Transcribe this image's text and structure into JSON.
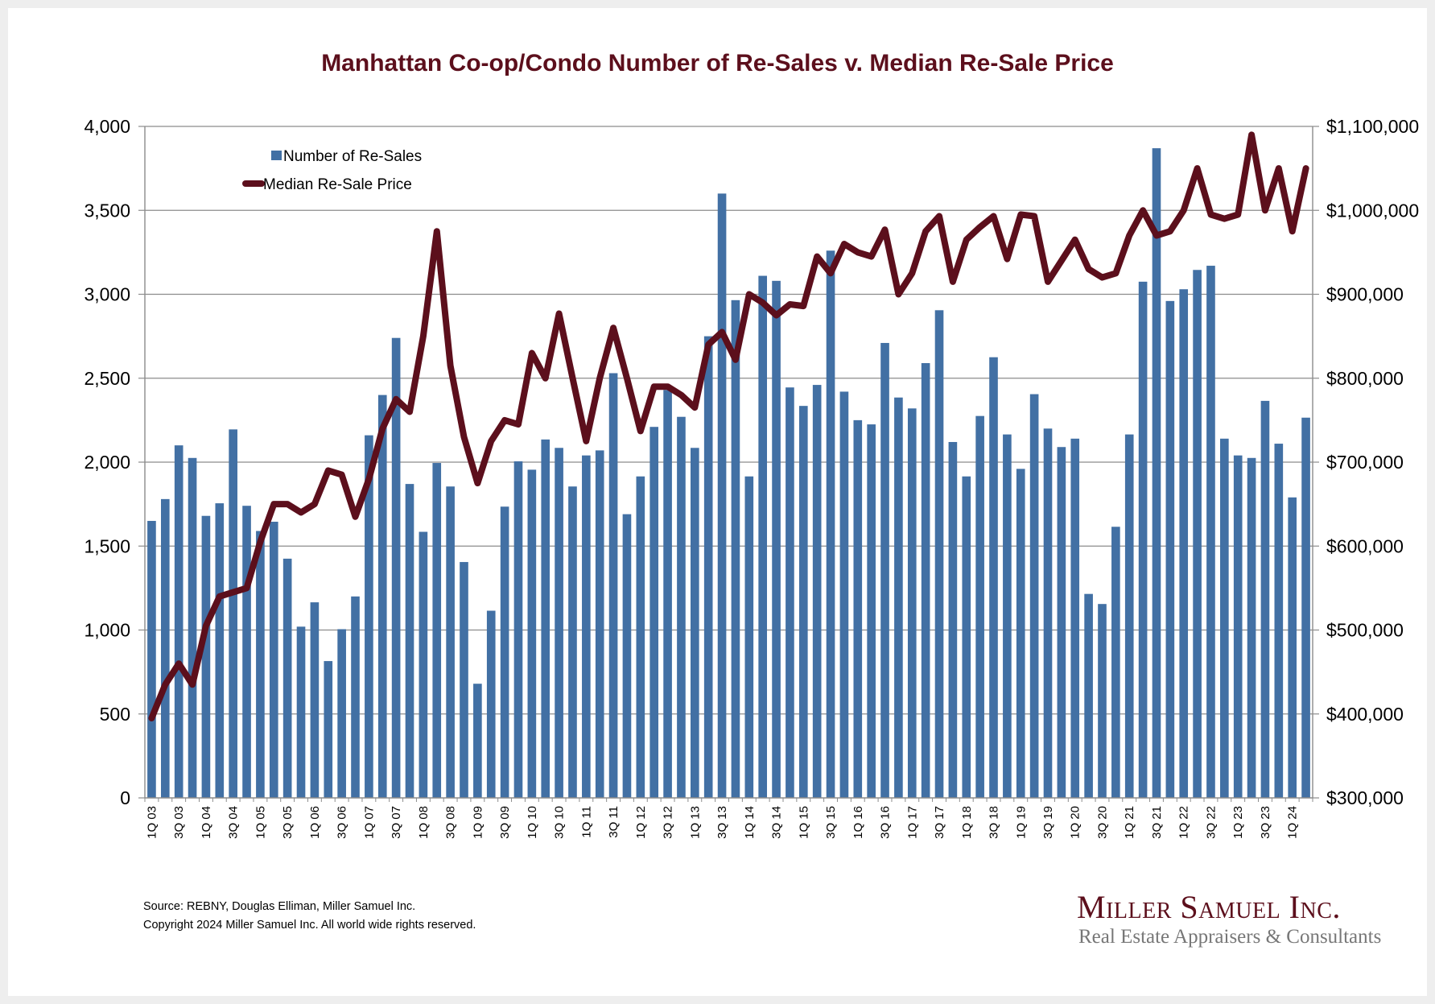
{
  "chart_data": {
    "type": "bar+line",
    "title": "Manhattan Co-op/Condo Number of Re-Sales v. Median Re-Sale Price",
    "xlabel": "",
    "ylabel_left": "",
    "ylabel_right": "",
    "categories": [
      "1Q 03",
      "2Q 03",
      "3Q 03",
      "4Q 03",
      "1Q 04",
      "2Q 04",
      "3Q 04",
      "4Q 04",
      "1Q 05",
      "2Q 05",
      "3Q 05",
      "4Q 05",
      "1Q 06",
      "2Q 06",
      "3Q 06",
      "4Q 06",
      "1Q 07",
      "2Q 07",
      "3Q 07",
      "4Q 07",
      "1Q 08",
      "2Q 08",
      "3Q 08",
      "4Q 08",
      "1Q 09",
      "2Q 09",
      "3Q 09",
      "4Q 09",
      "1Q 10",
      "2Q 10",
      "3Q 10",
      "4Q 10",
      "1Q 11",
      "2Q 11",
      "3Q 11",
      "4Q 11",
      "1Q 12",
      "2Q 12",
      "3Q 12",
      "4Q 12",
      "1Q 13",
      "2Q 13",
      "3Q 13",
      "4Q 13",
      "1Q 14",
      "2Q 14",
      "3Q 14",
      "4Q 14",
      "1Q 15",
      "2Q 15",
      "3Q 15",
      "4Q 15",
      "1Q 16",
      "2Q 16",
      "3Q 16",
      "4Q 16",
      "1Q 17",
      "2Q 17",
      "3Q 17",
      "4Q 17",
      "1Q 18",
      "2Q 18",
      "3Q 18",
      "4Q 18",
      "1Q 19",
      "2Q 19",
      "3Q 19",
      "4Q 19",
      "1Q 20",
      "2Q 20",
      "3Q 20",
      "4Q 20",
      "1Q 21",
      "2Q 21",
      "3Q 21",
      "4Q 21",
      "1Q 22",
      "2Q 22",
      "3Q 22",
      "4Q 22",
      "1Q 23",
      "2Q 23",
      "3Q 23",
      "4Q 23",
      "1Q 24",
      "2Q 24"
    ],
    "x_tick_labels_shown": [
      "1Q 03",
      "3Q 03",
      "1Q 04",
      "3Q 04",
      "1Q 05",
      "3Q 05",
      "1Q 06",
      "3Q 06",
      "1Q 07",
      "3Q 07",
      "1Q 08",
      "3Q 08",
      "1Q 09",
      "3Q 09",
      "1Q 10",
      "3Q 10",
      "1Q 11",
      "3Q 11",
      "1Q 12",
      "3Q 12",
      "1Q 13",
      "3Q 13",
      "1Q 14",
      "3Q 14",
      "1Q 15",
      "3Q 15",
      "1Q 16",
      "3Q 16",
      "1Q 17",
      "3Q 17",
      "1Q 18",
      "3Q 18",
      "1Q 19",
      "3Q 19",
      "1Q 20",
      "3Q 20",
      "1Q 21",
      "3Q 21",
      "1Q 22",
      "3Q 22",
      "1Q 23",
      "3Q 23",
      "1Q 24"
    ],
    "series": [
      {
        "name": "Number of Re-Sales",
        "type": "bar",
        "axis": "left",
        "color": "#4270a4",
        "values": [
          1650,
          1780,
          2100,
          2025,
          1680,
          1755,
          2195,
          1740,
          1590,
          1645,
          1425,
          1020,
          1165,
          815,
          1005,
          1200,
          2160,
          2400,
          2740,
          1870,
          1585,
          1995,
          1855,
          1405,
          680,
          1115,
          1735,
          2005,
          1955,
          2135,
          2085,
          1855,
          2040,
          2070,
          2530,
          1690,
          1915,
          2210,
          2430,
          2270,
          2085,
          2750,
          3600,
          2965,
          1915,
          3110,
          3080,
          2445,
          2335,
          2460,
          3260,
          2420,
          2250,
          2225,
          2710,
          2385,
          2320,
          2590,
          2905,
          2120,
          1915,
          2275,
          2625,
          2165,
          1960,
          2405,
          2200,
          2090,
          2140,
          1215,
          1155,
          1615,
          2165,
          3075,
          3870,
          2960,
          3030,
          3145,
          3170,
          2140,
          2040,
          2025,
          2365,
          2110,
          1790,
          2265
        ]
      },
      {
        "name": "Median Re-Sale Price",
        "type": "line",
        "axis": "right",
        "color": "#5c0f1c",
        "values": [
          395000,
          435000,
          460000,
          435000,
          505000,
          540000,
          545000,
          550000,
          605000,
          650000,
          650000,
          640000,
          650000,
          690000,
          685000,
          635000,
          680000,
          740000,
          775000,
          760000,
          850000,
          975000,
          815000,
          730000,
          675000,
          725000,
          750000,
          745000,
          830000,
          800000,
          877000,
          800000,
          725000,
          800000,
          860000,
          800000,
          737000,
          790000,
          790000,
          780000,
          765000,
          840000,
          855000,
          822000,
          900000,
          890000,
          875000,
          888000,
          886000,
          945000,
          925000,
          960000,
          950000,
          945000,
          977000,
          900000,
          925000,
          975000,
          993000,
          915000,
          965000,
          980000,
          993000,
          942000,
          995000,
          993000,
          915000,
          940000,
          965000,
          930000,
          920000,
          925000,
          970000,
          1000000,
          970000,
          975000,
          1000000,
          1050000,
          995000,
          990000,
          995000,
          1090000,
          1000000,
          1050000,
          975000,
          1050000
        ]
      }
    ],
    "left_axis": {
      "range": [
        0,
        4000
      ],
      "ticks": [
        "0",
        "500",
        "1,000",
        "1,500",
        "2,000",
        "2,500",
        "3,000",
        "3,500",
        "4,000"
      ],
      "tick_values": [
        0,
        500,
        1000,
        1500,
        2000,
        2500,
        3000,
        3500,
        4000
      ]
    },
    "right_axis": {
      "range": [
        300000,
        1100000
      ],
      "ticks": [
        "$300,000",
        "$400,000",
        "$500,000",
        "$600,000",
        "$700,000",
        "$800,000",
        "$900,000",
        "$1,000,000",
        "$1,100,000"
      ],
      "tick_values": [
        300000,
        400000,
        500000,
        600000,
        700000,
        800000,
        900000,
        1000000,
        1100000
      ]
    },
    "grid": true,
    "legend": {
      "placement": "top-left",
      "entries": [
        "Number of Re-Sales",
        "Median Re-Sale Price"
      ]
    }
  },
  "footer": {
    "source": "Source: REBNY, Douglas Elliman, Miller Samuel Inc.",
    "copyright": "Copyright 2024 Miller Samuel Inc.  All world wide rights reserved."
  },
  "logo": {
    "name": "Miller Samuel Inc.",
    "tagline": "Real Estate Appraisers & Consultants"
  }
}
